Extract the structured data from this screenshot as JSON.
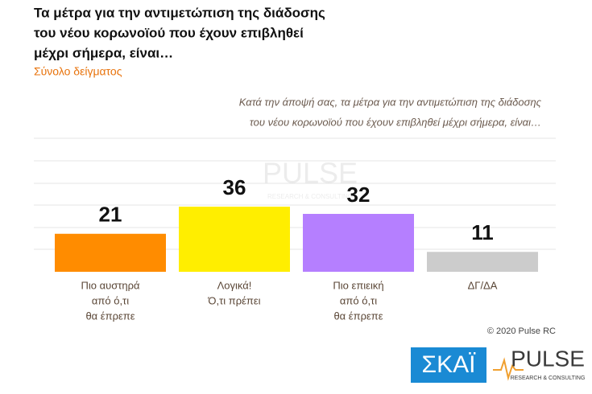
{
  "chart_data": {
    "type": "bar",
    "title": [
      "Τα μέτρα για την αντιμετώπιση της διάδοσης",
      "του νέου κορωνοϊού που έχουν επιβληθεί",
      "μέχρι σήμερα, είναι…"
    ],
    "subtitle": "Σύνολο δείγματος",
    "question": [
      "Κατά την άποψή σας, τα μέτρα για την αντιμετώπιση της διάδοσης",
      "του νέου κορωνοϊού που έχουν επιβληθεί μέχρι σήμερα, είναι…"
    ],
    "categories": [
      [
        "Πιο αυστηρά",
        "από ό,τι",
        "θα έπρεπε"
      ],
      [
        "Λογικά!",
        "Ό,τι πρέπει"
      ],
      [
        "Πιο επιεική",
        "από ό,τι",
        "θα έπρεπε"
      ],
      [
        "ΔΓ/ΔΑ"
      ]
    ],
    "values": [
      21,
      36,
      32,
      11
    ],
    "colors": [
      "#ff8c00",
      "#ffee00",
      "#b57fff",
      "#cccccc"
    ],
    "ylim": [
      0,
      100
    ],
    "copyright": "© 2020 Pulse RC",
    "logos": {
      "skai": "ΣΚΑΪ",
      "pulse": "PULSE",
      "pulse_sub": "RESEARCH & CONSULTING"
    }
  }
}
